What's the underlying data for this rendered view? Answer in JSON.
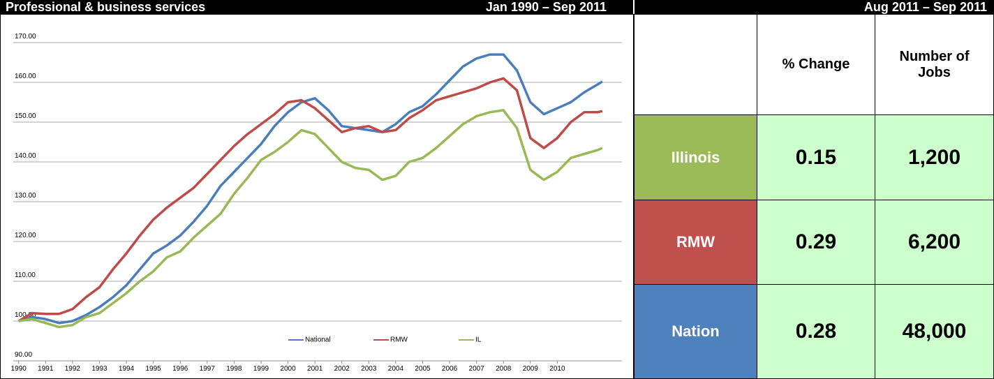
{
  "header": {
    "title": "Professional & business services",
    "period": "Jan 1990 – Sep 2011",
    "table_period": "Aug 2011 – Sep 2011"
  },
  "chart_data": {
    "type": "line",
    "x": [
      1990,
      1990.5,
      1991,
      1991.5,
      1992,
      1992.5,
      1993,
      1993.5,
      1994,
      1994.5,
      1995,
      1995.5,
      1996,
      1996.5,
      1997,
      1997.5,
      1998,
      1998.5,
      1999,
      1999.5,
      2000,
      2000.5,
      2001,
      2001.5,
      2002,
      2002.5,
      2003,
      2003.5,
      2004,
      2004.5,
      2005,
      2005.5,
      2006,
      2006.5,
      2007,
      2007.5,
      2008,
      2008.5,
      2009,
      2009.5,
      2010,
      2010.5,
      2011,
      2011.5,
      2011.67
    ],
    "series": [
      {
        "name": "National",
        "color": "#4a7ebb",
        "values": [
          100,
          101,
          100.5,
          99.5,
          100,
          101.5,
          103.5,
          106,
          109,
          113,
          117,
          119,
          121.5,
          125,
          129,
          134,
          137.5,
          141,
          144.5,
          149,
          152.5,
          155,
          156,
          153,
          149,
          148.5,
          148,
          147.5,
          149.5,
          152.5,
          154,
          157,
          160.5,
          164,
          166,
          167,
          167,
          163,
          155,
          152,
          153.5,
          155,
          157.5,
          159.5,
          160.2
        ]
      },
      {
        "name": "RMW",
        "color": "#be4b48",
        "values": [
          100,
          102,
          101.8,
          101.8,
          103,
          106,
          108.5,
          113,
          117,
          121.5,
          125.5,
          128.5,
          131,
          133.5,
          137,
          140.5,
          144,
          147,
          149.5,
          152,
          155,
          155.5,
          153.5,
          150.5,
          147.5,
          148.5,
          149,
          147.5,
          148,
          151,
          153,
          155.5,
          156.5,
          157.5,
          158.5,
          160,
          161,
          158,
          146,
          143.5,
          146,
          150,
          152.5,
          152.5,
          152.8
        ]
      },
      {
        "name": "IL",
        "color": "#98b954",
        "values": [
          100,
          100.5,
          99.5,
          98.5,
          99,
          101,
          102,
          104.5,
          107,
          110,
          112.5,
          116,
          117.5,
          121,
          124,
          127,
          132,
          136,
          140.5,
          142.5,
          145,
          148,
          147,
          143.5,
          140,
          138.5,
          138,
          135.5,
          136.5,
          140,
          141,
          143.5,
          146.5,
          149.5,
          151.5,
          152.5,
          153,
          148.5,
          138,
          135.5,
          137.5,
          141,
          142,
          143,
          143.5
        ]
      }
    ],
    "xlim": [
      1989.8,
      2012.4
    ],
    "xticks": [
      1990,
      1991,
      1992,
      1993,
      1994,
      1995,
      1996,
      1997,
      1998,
      1999,
      2000,
      2001,
      2002,
      2003,
      2004,
      2005,
      2006,
      2007,
      2008,
      2009,
      2010
    ],
    "ylim": [
      90,
      170
    ],
    "yticks": [
      {
        "value": 90,
        "label": "90.00"
      },
      {
        "value": 100,
        "label": "100.00"
      },
      {
        "value": 110,
        "label": "110.00"
      },
      {
        "value": 120,
        "label": "120.00"
      },
      {
        "value": 130,
        "label": "130.00"
      },
      {
        "value": 140,
        "label": "140.00"
      },
      {
        "value": 150,
        "label": "150.00"
      },
      {
        "value": 160,
        "label": "160.00"
      },
      {
        "value": 170,
        "label": "170.00"
      }
    ],
    "grid": true,
    "legend": "bottom"
  },
  "table": {
    "columns": [
      "% Change",
      "Number of Jobs"
    ],
    "rows": [
      {
        "name": "Illinois",
        "color": "#9bbb59",
        "change": "0.15",
        "jobs": "1,200"
      },
      {
        "name": "RMW",
        "color": "#c0504d",
        "change": "0.29",
        "jobs": "6,200"
      },
      {
        "name": "Nation",
        "color": "#4f81bd",
        "change": "0.28",
        "jobs": "48,000"
      }
    ]
  }
}
